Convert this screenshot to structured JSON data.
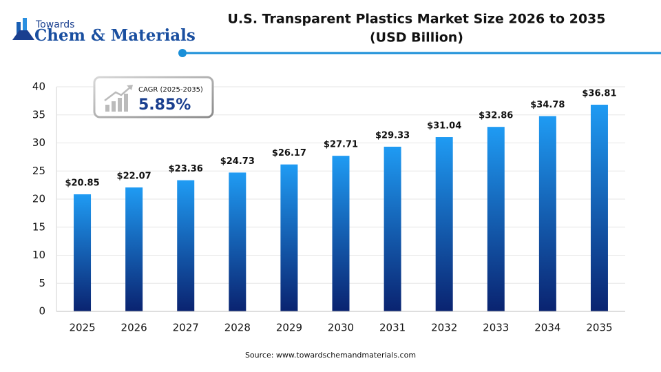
{
  "logo": {
    "top": "Towards",
    "name": "Chem & Materials"
  },
  "chart_data": {
    "type": "bar",
    "title": [
      "U.S. Transparent Plastics Market Size 2026 to 2035",
      "(USD Billion)"
    ],
    "categories": [
      "2025",
      "2026",
      "2027",
      "2028",
      "2029",
      "2030",
      "2031",
      "2032",
      "2033",
      "2034",
      "2035"
    ],
    "values": [
      20.85,
      22.07,
      23.36,
      24.73,
      26.17,
      27.71,
      29.33,
      31.04,
      32.86,
      34.78,
      36.81
    ],
    "value_labels": [
      "$20.85",
      "$22.07",
      "$23.36",
      "$24.73",
      "$26.17",
      "$27.71",
      "$29.33",
      "$31.04",
      "$32.86",
      "$34.78",
      "$36.81"
    ],
    "gradient": [
      "#1f9bf3",
      "#0a2370"
    ],
    "ylim": [
      0,
      40
    ],
    "yticks": [
      0,
      5,
      10,
      15,
      20,
      25,
      30,
      35,
      40
    ],
    "grid": true,
    "annotation": {
      "label": "CAGR (2025-2035)",
      "value": "5.85%"
    },
    "source": "Source: www.towardschemandmaterials.com"
  }
}
